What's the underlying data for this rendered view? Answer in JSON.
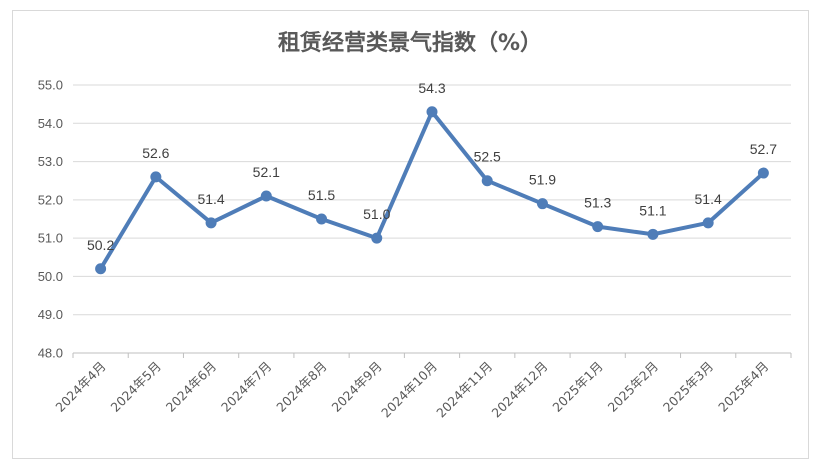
{
  "chart_data": {
    "type": "line",
    "title": "租赁经营类景气指数（%）",
    "categories": [
      "2024年4月",
      "2024年5月",
      "2024年6月",
      "2024年7月",
      "2024年8月",
      "2024年9月",
      "2024年10月",
      "2024年11月",
      "2024年12月",
      "2025年1月",
      "2025年2月",
      "2025年3月",
      "2025年4月"
    ],
    "series": [
      {
        "values": [
          50.2,
          52.6,
          51.4,
          52.1,
          51.5,
          51.0,
          54.3,
          52.5,
          51.9,
          51.3,
          51.1,
          51.4,
          52.7
        ]
      }
    ],
    "data_labels": [
      "50.2",
      "52.6",
      "51.4",
      "52.1",
      "51.5",
      "51.0",
      "54.3",
      "52.5",
      "51.9",
      "51.3",
      "51.1",
      "51.4",
      "52.7"
    ],
    "yticks": [
      "48.0",
      "49.0",
      "50.0",
      "51.0",
      "52.0",
      "53.0",
      "54.0",
      "55.0"
    ],
    "ylim": [
      48,
      55
    ],
    "grid": true,
    "legend": "none",
    "colors": {
      "series": "#4f7db8",
      "grid": "#d9d9d9",
      "text": "#595959"
    }
  }
}
